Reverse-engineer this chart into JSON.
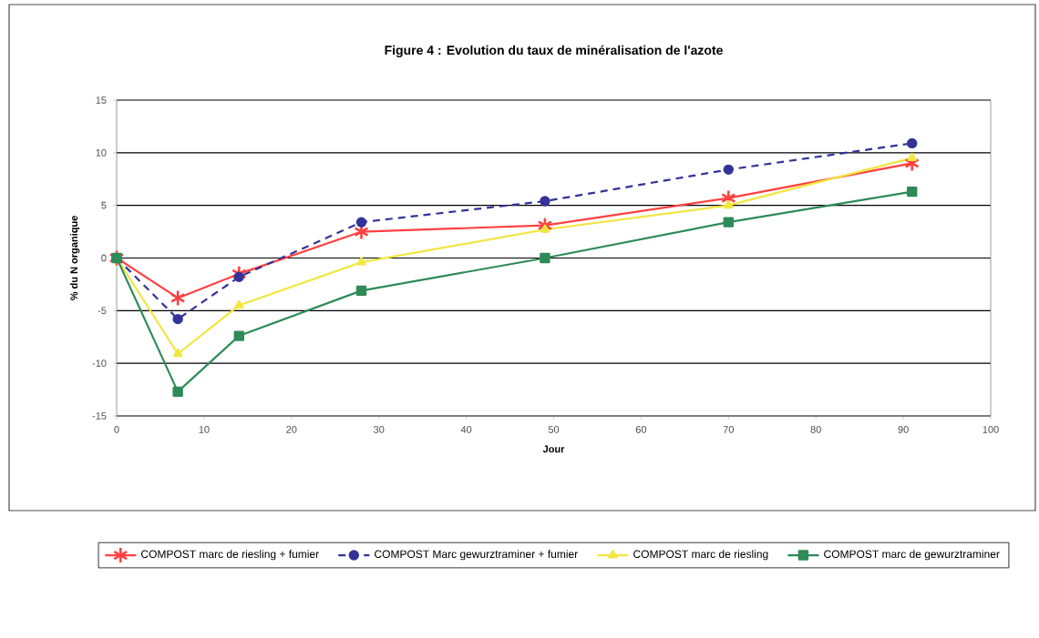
{
  "chart_data": {
    "type": "line",
    "title": "Figure 4 : Evolution du taux de minéralisation de l'azote",
    "xlabel": "Jour",
    "ylabel": "% du N organique",
    "x": [
      0,
      7,
      14,
      28,
      49,
      70,
      91
    ],
    "series": [
      {
        "name": "COMPOST marc de riesling + fumier",
        "color": "#ff4040",
        "marker": "cross",
        "line_style": "solid",
        "values": [
          0,
          -3.8,
          -1.5,
          2.5,
          3.1,
          5.7,
          9.0
        ]
      },
      {
        "name": "COMPOST Marc gewurztraminer + fumier",
        "color": "#333399",
        "marker": "circle",
        "line_style": "dashed",
        "values": [
          0,
          -5.8,
          -1.8,
          3.4,
          5.4,
          8.4,
          10.9
        ]
      },
      {
        "name": "COMPOST marc de riesling",
        "color": "#f2e640",
        "marker": "triangle",
        "line_style": "solid",
        "values": [
          0,
          -9.1,
          -4.5,
          -0.4,
          2.7,
          5.0,
          9.5
        ]
      },
      {
        "name": "COMPOST marc de gewurztraminer",
        "color": "#2e8b57",
        "marker": "square",
        "line_style": "solid",
        "values": [
          0,
          -12.7,
          -7.4,
          -3.1,
          0,
          3.4,
          6.3
        ]
      }
    ],
    "xlim": [
      0,
      100
    ],
    "xticks": [
      0,
      10,
      20,
      30,
      40,
      50,
      60,
      70,
      80,
      90,
      100
    ],
    "ylim": [
      -15,
      15
    ],
    "yticks": [
      -15,
      -10,
      -5,
      0,
      5,
      10,
      15
    ],
    "grid": "y",
    "legend": "bottom"
  }
}
